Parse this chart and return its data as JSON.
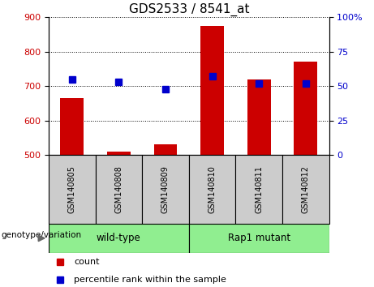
{
  "title": "GDS2533 / 8541_at",
  "samples": [
    "GSM140805",
    "GSM140808",
    "GSM140809",
    "GSM140810",
    "GSM140811",
    "GSM140812"
  ],
  "count_values": [
    665,
    510,
    530,
    875,
    720,
    770
  ],
  "percentile_values": [
    55,
    53,
    48,
    57,
    52,
    52
  ],
  "ylim_left": [
    500,
    900
  ],
  "ylim_right": [
    0,
    100
  ],
  "yticks_left": [
    500,
    600,
    700,
    800,
    900
  ],
  "yticks_right": [
    0,
    25,
    50,
    75,
    100
  ],
  "bar_color": "#cc0000",
  "marker_color": "#0000cc",
  "bg_label_area": "#cccccc",
  "bg_group": "#90ee90",
  "wildtype_label": "wild-type",
  "mutant_label": "Rap1 mutant",
  "genotype_label": "genotype/variation",
  "legend_count": "count",
  "legend_percentile": "percentile rank within the sample",
  "bar_width": 0.5,
  "marker_size": 6,
  "title_fontsize": 11,
  "tick_fontsize": 8,
  "label_fontsize": 8
}
